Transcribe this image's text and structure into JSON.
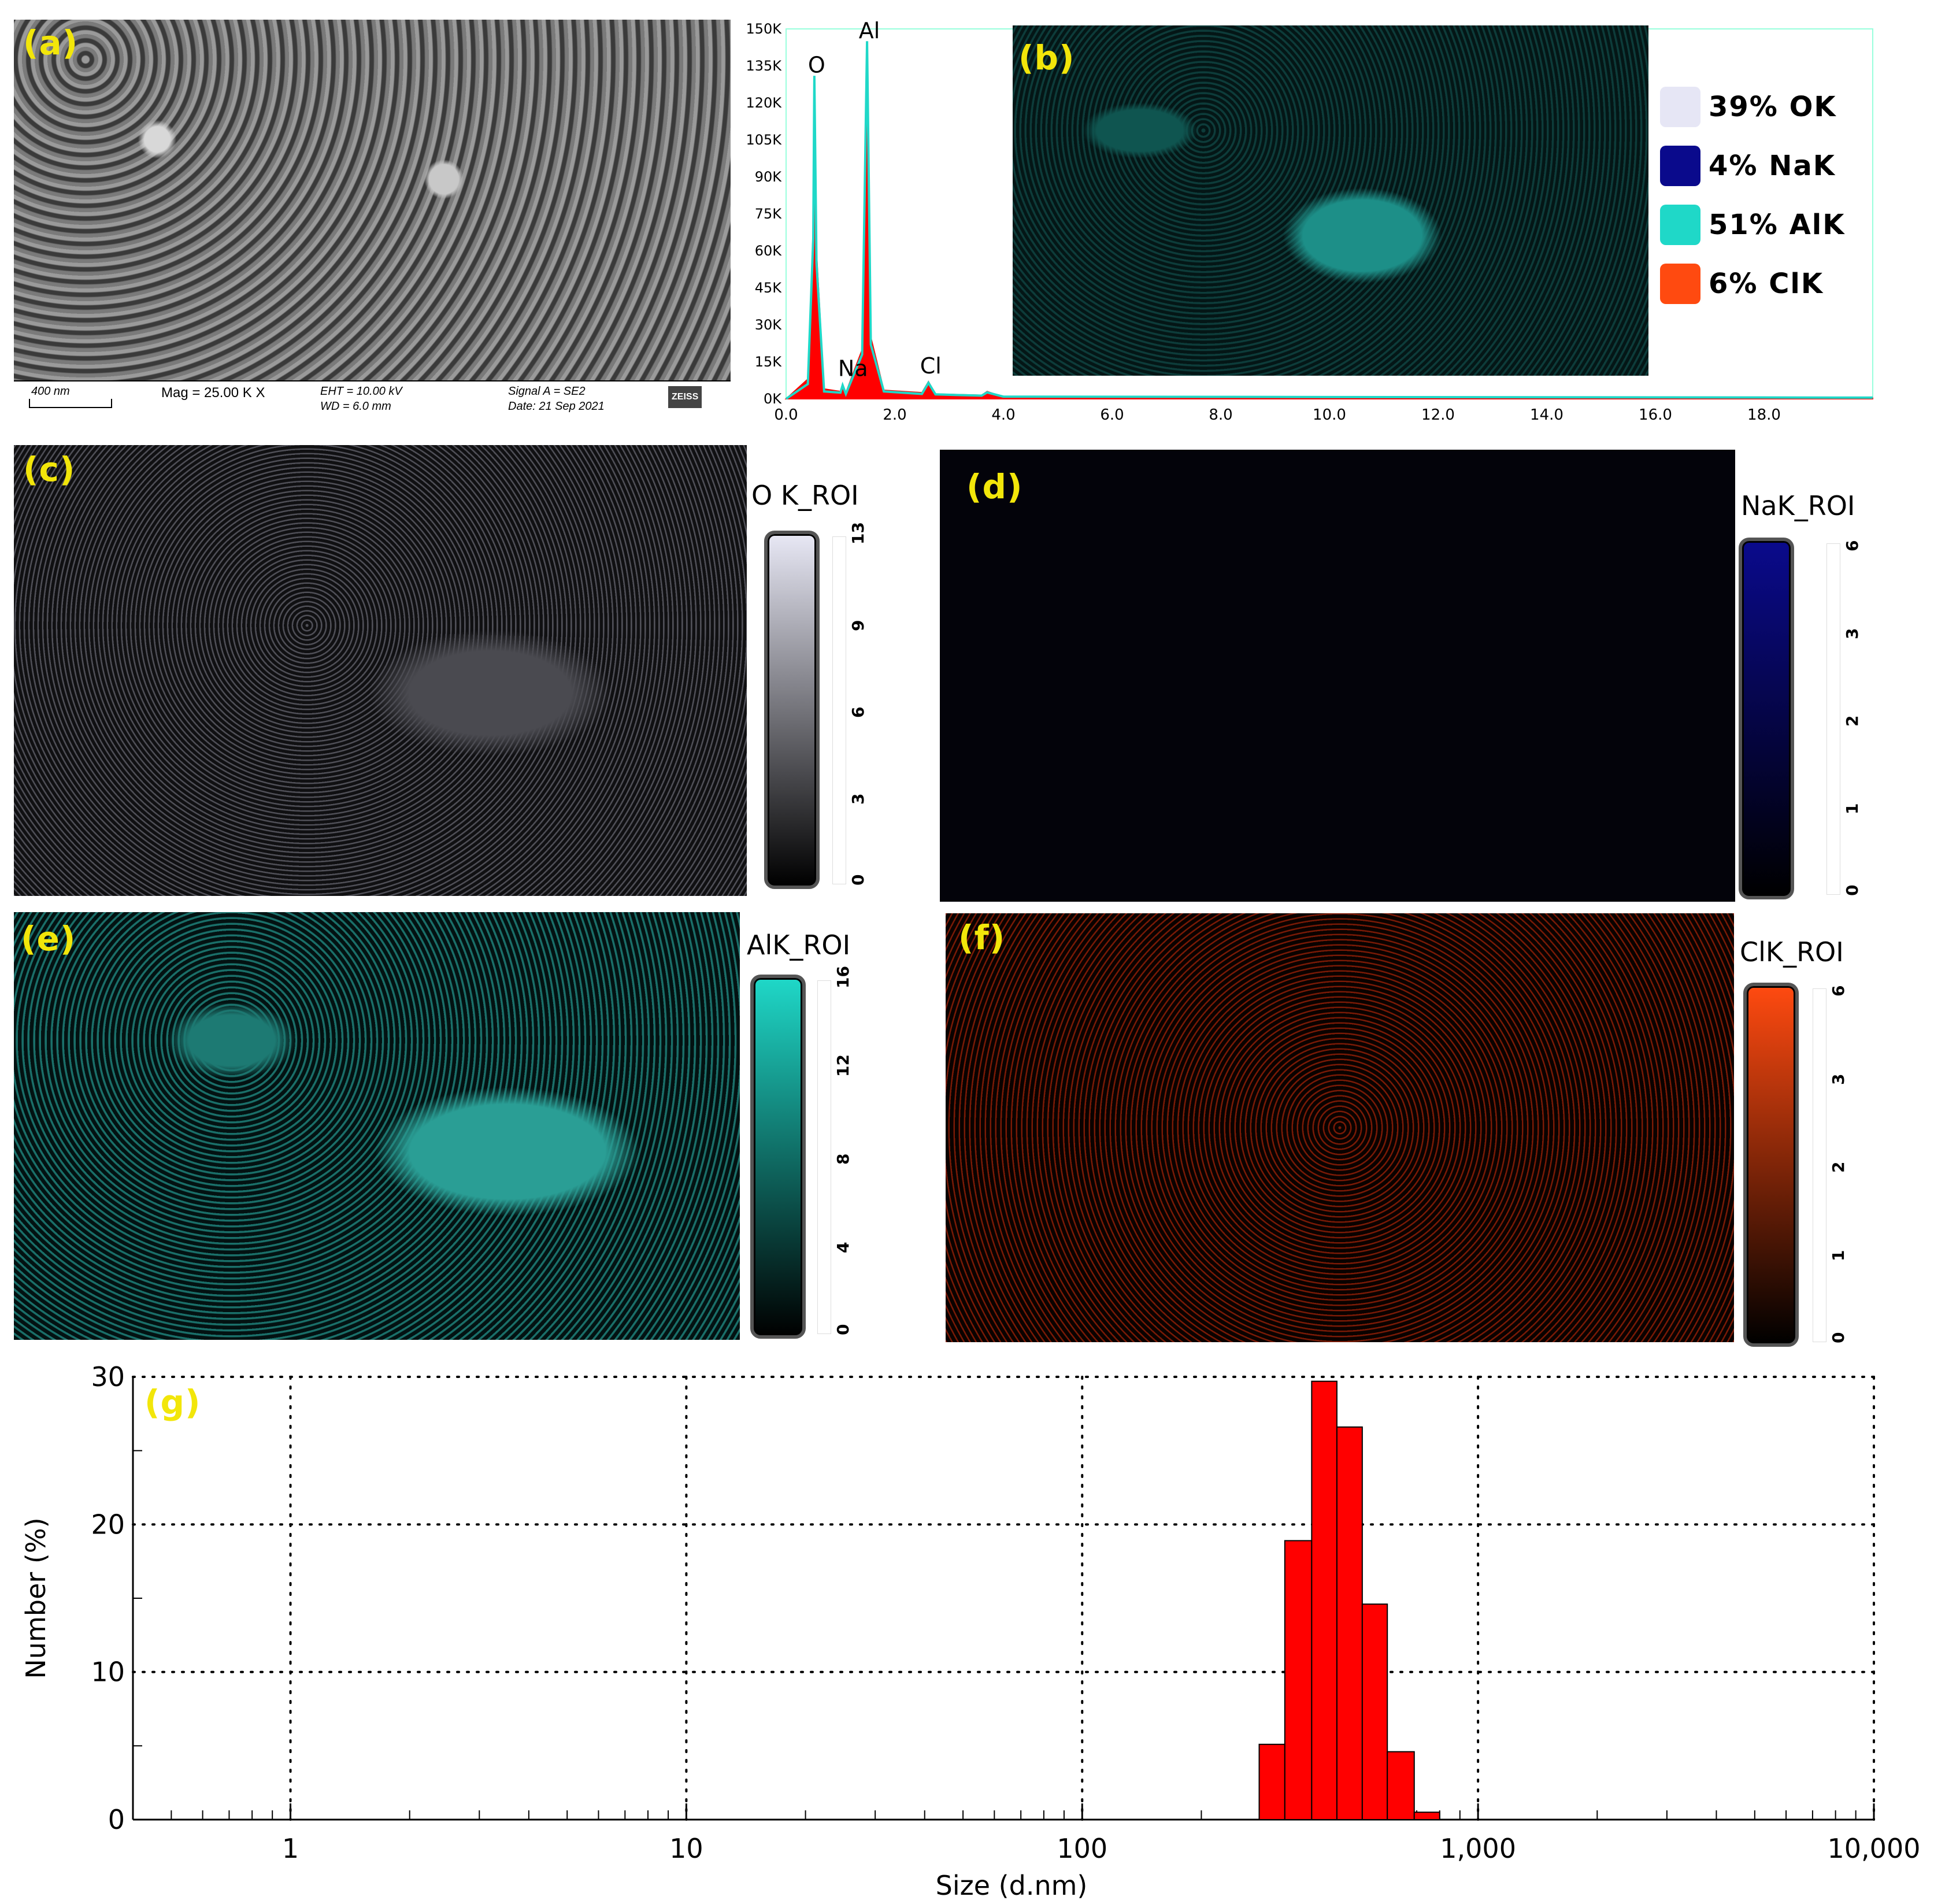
{
  "panels": {
    "a": "(a)",
    "b": "(b)",
    "c": "(c)",
    "d": "(d)",
    "e": "(e)",
    "f": "(f)",
    "g": "(g)"
  },
  "sem_info": {
    "scale": "400 nm",
    "mag": "Mag =   25.00 K X",
    "eht": "EHT = 10.00 kV",
    "wd": "WD =  6.0 mm",
    "signal": "Signal A = SE2",
    "date": "Date: 21 Sep 2021",
    "brand": "ZEISS"
  },
  "eds_legend": [
    {
      "label": "39% OK",
      "color": "#e6e6f5"
    },
    {
      "label": "4% NaK",
      "color": "#0a0a8c"
    },
    {
      "label": "51% AlK",
      "color": "#1fd8c8"
    },
    {
      "label": "6% ClK",
      "color": "#ff4a10"
    }
  ],
  "maps": {
    "c": {
      "title": "O K_ROI",
      "ticks": [
        "0",
        "3",
        "6",
        "9",
        "13"
      ],
      "top": "#e8e8f5",
      "bottom": "#000000",
      "tint": "#b8b8c8"
    },
    "d": {
      "title": "NaK_ROI",
      "ticks": [
        "0",
        "1",
        "2",
        "3",
        "6"
      ],
      "top": "#0a0a8c",
      "bottom": "#000000",
      "tint": "#0a0a60"
    },
    "e": {
      "title": "AlK_ROI",
      "ticks": [
        "0",
        "4",
        "8",
        "12",
        "16"
      ],
      "top": "#1fd8c8",
      "bottom": "#000000",
      "tint": "#1a9a90"
    },
    "f": {
      "title": "ClK_ROI",
      "ticks": [
        "0",
        "1",
        "2",
        "3",
        "6"
      ],
      "top": "#ff4a10",
      "bottom": "#000000",
      "tint": "#c02a08"
    }
  },
  "chart_data": [
    {
      "type": "line",
      "xlim": [
        0,
        20
      ],
      "ylim": [
        0,
        150000
      ],
      "x_ticks": [
        "0.0",
        "2.0",
        "4.0",
        "6.0",
        "8.0",
        "10.0",
        "12.0",
        "14.0",
        "16.0",
        "18.0"
      ],
      "y_ticks": [
        "0K",
        "15K",
        "30K",
        "45K",
        "60K",
        "75K",
        "90K",
        "105K",
        "120K",
        "135K",
        "150K"
      ],
      "peaks": [
        {
          "label": "O",
          "x": 0.52,
          "y": 129000
        },
        {
          "label": "Na",
          "x": 1.04,
          "y": 6000
        },
        {
          "label": "Al",
          "x": 1.49,
          "y": 143000
        },
        {
          "label": "Cl",
          "x": 2.62,
          "y": 7000
        }
      ],
      "series": [
        {
          "color": "#ff0000",
          "x": [
            0.0,
            0.2,
            0.4,
            0.5,
            0.52,
            0.56,
            0.7,
            1.0,
            1.04,
            1.1,
            1.4,
            1.49,
            1.56,
            1.8,
            2.5,
            2.62,
            2.75,
            3.6,
            3.7,
            4.0,
            20.0
          ],
          "y": [
            0,
            4000,
            8000,
            70000,
            129000,
            60000,
            4000,
            3000,
            6000,
            2500,
            20000,
            143000,
            25000,
            3500,
            2500,
            7000,
            2000,
            1500,
            3000,
            800,
            300
          ]
        },
        {
          "color": "#1fd8c8",
          "x": [
            0.0,
            0.2,
            0.4,
            0.5,
            0.52,
            0.56,
            0.7,
            1.0,
            1.04,
            1.1,
            1.4,
            1.49,
            1.56,
            1.8,
            2.5,
            2.62,
            2.75,
            3.6,
            3.7,
            4.0,
            20.0
          ],
          "y": [
            0,
            3000,
            6000,
            65000,
            131000,
            55000,
            3000,
            2500,
            5500,
            2000,
            18000,
            145000,
            22000,
            3000,
            2000,
            6500,
            1800,
            1300,
            2600,
            900,
            500
          ]
        }
      ]
    },
    {
      "type": "bar",
      "xlabel": "Size (d.nm)",
      "ylabel": "Number (%)",
      "x_scale": "log",
      "xlim": [
        0.4,
        10000
      ],
      "ylim": [
        0,
        30
      ],
      "x_ticks": [
        "1",
        "10",
        "100",
        "1,000",
        "10,000"
      ],
      "y_ticks": [
        "0",
        "10",
        "20",
        "30"
      ],
      "grid": true,
      "bars": [
        {
          "x0": 280,
          "x1": 325,
          "value": 5.1
        },
        {
          "x0": 325,
          "x1": 380,
          "value": 18.9
        },
        {
          "x0": 380,
          "x1": 440,
          "value": 29.7
        },
        {
          "x0": 440,
          "x1": 510,
          "value": 26.6
        },
        {
          "x0": 510,
          "x1": 590,
          "value": 14.6
        },
        {
          "x0": 590,
          "x1": 690,
          "value": 4.6
        },
        {
          "x0": 690,
          "x1": 800,
          "value": 0.5
        }
      ],
      "bar_color": "#ff0000"
    }
  ]
}
